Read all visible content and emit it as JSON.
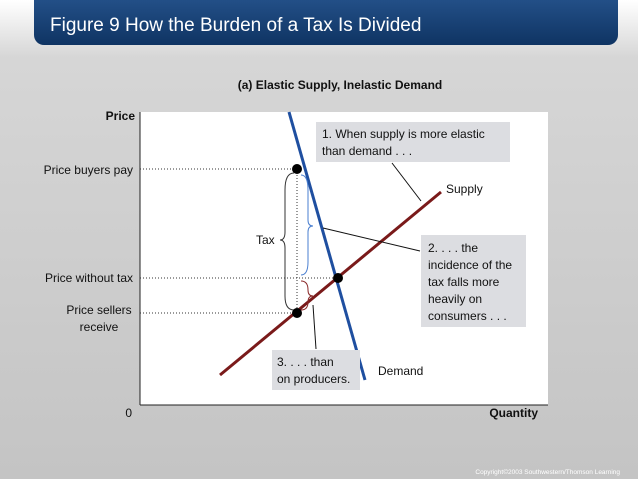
{
  "header": {
    "title": "Figure 9 How the Burden of a Tax Is Divided"
  },
  "panel": {
    "subtitle": "(a) Elastic Supply, Inelastic Demand"
  },
  "axes": {
    "y_label": "Price",
    "x_label": "Quantity",
    "origin": "0"
  },
  "price_labels": {
    "buyers": "Price buyers pay",
    "without_tax": "Price without tax",
    "sellers": [
      "Price sellers",
      "receive"
    ]
  },
  "curves": {
    "supply": "Supply",
    "demand": "Demand",
    "tax": "Tax"
  },
  "annotations": [
    [
      "1. When supply is more elastic",
      "than demand . . ."
    ],
    [
      "2. . . . the",
      "incidence of the",
      "tax falls more",
      "heavily on",
      "consumers . . ."
    ],
    [
      "3. . . . than",
      "on producers."
    ]
  ],
  "footer": {
    "copyright": "Copyright©2003  Southwestern/Thomson Learning"
  }
}
